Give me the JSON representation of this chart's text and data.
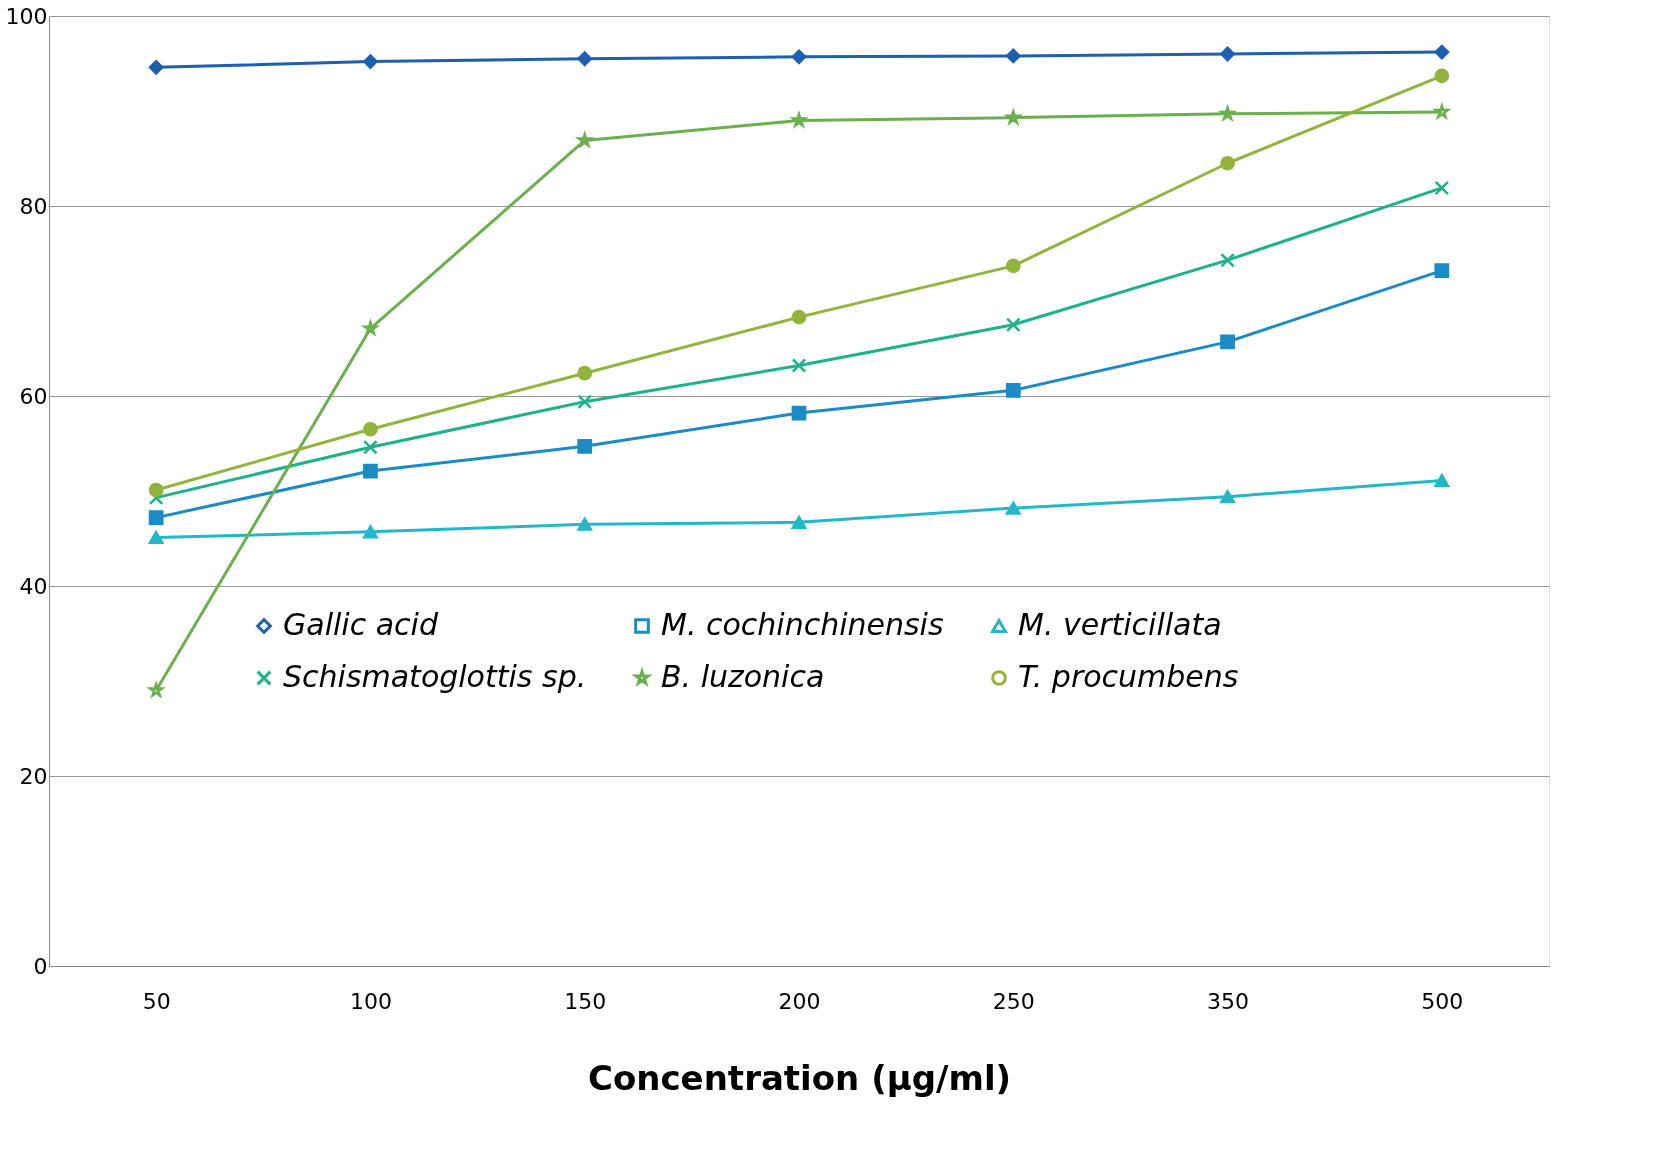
{
  "chart_data": {
    "type": "line",
    "xlabel": "Concentration (µg/ml)",
    "categories": [
      "50",
      "100",
      "150",
      "200",
      "250",
      "350",
      "500"
    ],
    "ylim": [
      0,
      100
    ],
    "yticks": [
      0,
      20,
      40,
      60,
      80,
      100
    ],
    "grid": "y",
    "legend": "bottom",
    "series": [
      {
        "name": "Gallic acid",
        "color": "#1f5fb0",
        "marker": "diamond",
        "values": [
          94.6,
          95.2,
          95.5,
          95.7,
          95.8,
          96.0,
          96.2
        ]
      },
      {
        "name": "M. cochinchinensis",
        "color": "#1b8bc6",
        "marker": "square",
        "values": [
          47.2,
          52.1,
          54.7,
          58.2,
          60.6,
          65.7,
          73.2
        ]
      },
      {
        "name": "M. verticillata",
        "color": "#22b8c8",
        "marker": "triangle",
        "values": [
          45.1,
          45.7,
          46.5,
          46.7,
          48.2,
          49.4,
          51.1
        ]
      },
      {
        "name": "Schismatoglottis sp.",
        "color": "#1db38a",
        "marker": "cross",
        "values": [
          49.3,
          54.6,
          59.4,
          63.2,
          67.5,
          74.3,
          81.9
        ]
      },
      {
        "name": "B. luzonica",
        "color": "#6ab04c",
        "marker": "star",
        "values": [
          29.0,
          67.1,
          86.9,
          89.0,
          89.3,
          89.7,
          89.9
        ]
      },
      {
        "name": "T. procumbens",
        "color": "#93b33c",
        "marker": "circle",
        "values": [
          50.1,
          56.5,
          62.4,
          68.3,
          73.7,
          84.5,
          93.7
        ]
      }
    ]
  }
}
